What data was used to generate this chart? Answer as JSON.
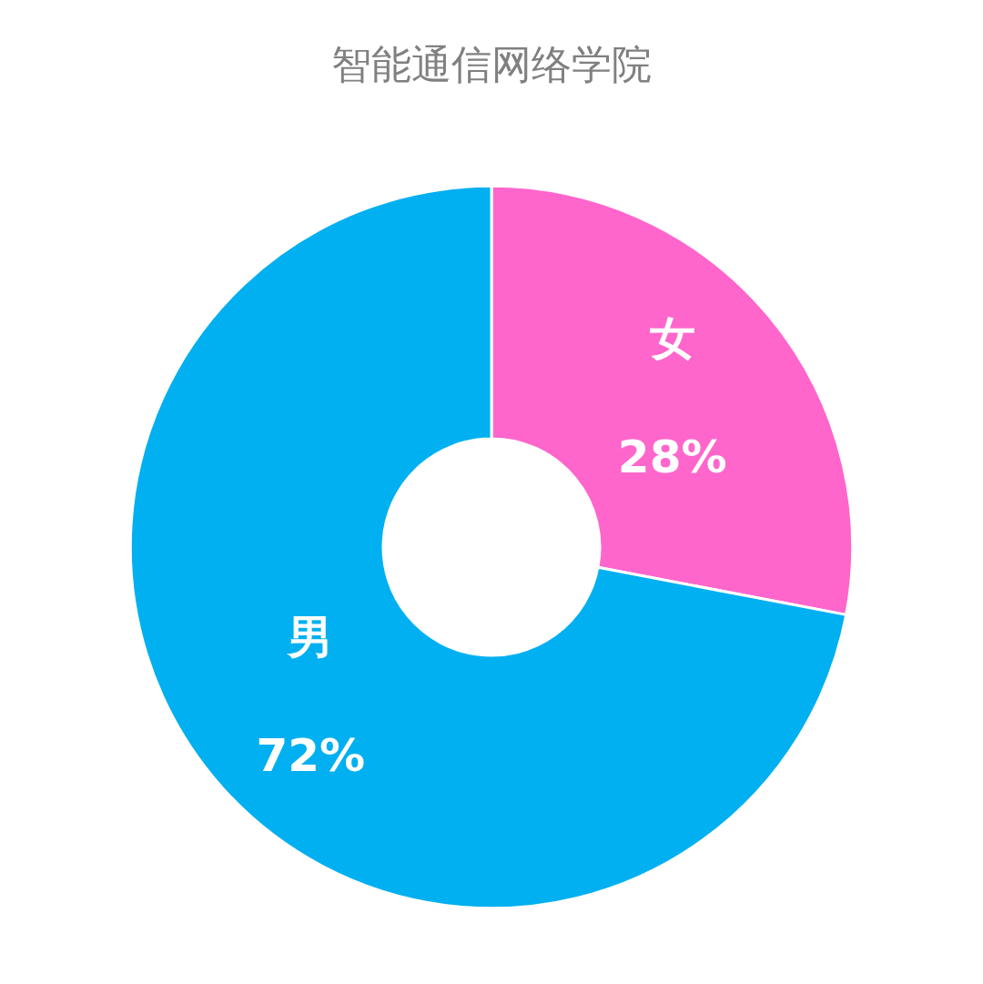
{
  "chart_data": {
    "type": "donut",
    "title": "智能通信网络学院",
    "categories": [
      "女",
      "男"
    ],
    "values": [
      28,
      72
    ],
    "value_labels": [
      "28%",
      "72%"
    ],
    "colors": [
      "#ff66cc",
      "#00b0f0"
    ],
    "legend": false
  }
}
